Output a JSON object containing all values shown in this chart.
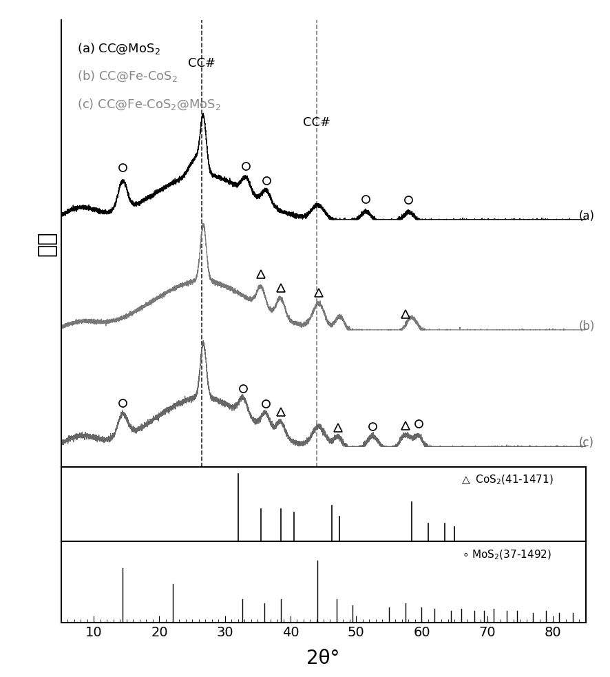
{
  "xlim": [
    5,
    85
  ],
  "xlabel": "2θ°",
  "ylabel": "强度",
  "legend_a": "(a) CC@MoS$_2$",
  "legend_b": "(b) CC@Fe-CoS$_2$",
  "legend_c": "(c) CC@Fe-CoS$_2$@MoS$_2$",
  "color_a": "#000000",
  "color_b": "#777777",
  "color_c": "#666666",
  "dashed_line1": 26.5,
  "dashed_line2": 44.0,
  "background_color": "#ffffff",
  "cos2_ref_lines": [
    [
      32.0,
      0.95
    ],
    [
      35.5,
      0.45
    ],
    [
      38.5,
      0.45
    ],
    [
      40.5,
      0.4
    ],
    [
      46.3,
      0.5
    ],
    [
      47.5,
      0.35
    ],
    [
      58.5,
      0.55
    ],
    [
      61.0,
      0.25
    ],
    [
      63.5,
      0.25
    ],
    [
      65.0,
      0.2
    ]
  ],
  "mos2_ref_lines": [
    [
      14.4,
      0.7
    ],
    [
      22.0,
      0.5
    ],
    [
      32.7,
      0.3
    ],
    [
      36.0,
      0.25
    ],
    [
      38.5,
      0.3
    ],
    [
      44.1,
      0.8
    ],
    [
      47.0,
      0.3
    ],
    [
      49.5,
      0.22
    ],
    [
      55.0,
      0.2
    ],
    [
      57.5,
      0.25
    ],
    [
      60.0,
      0.2
    ],
    [
      62.0,
      0.18
    ],
    [
      64.5,
      0.15
    ],
    [
      66.0,
      0.18
    ],
    [
      68.0,
      0.15
    ],
    [
      69.5,
      0.15
    ],
    [
      71.0,
      0.18
    ],
    [
      73.0,
      0.15
    ],
    [
      74.5,
      0.15
    ],
    [
      77.0,
      0.13
    ],
    [
      79.0,
      0.15
    ],
    [
      81.0,
      0.13
    ],
    [
      83.0,
      0.13
    ]
  ]
}
